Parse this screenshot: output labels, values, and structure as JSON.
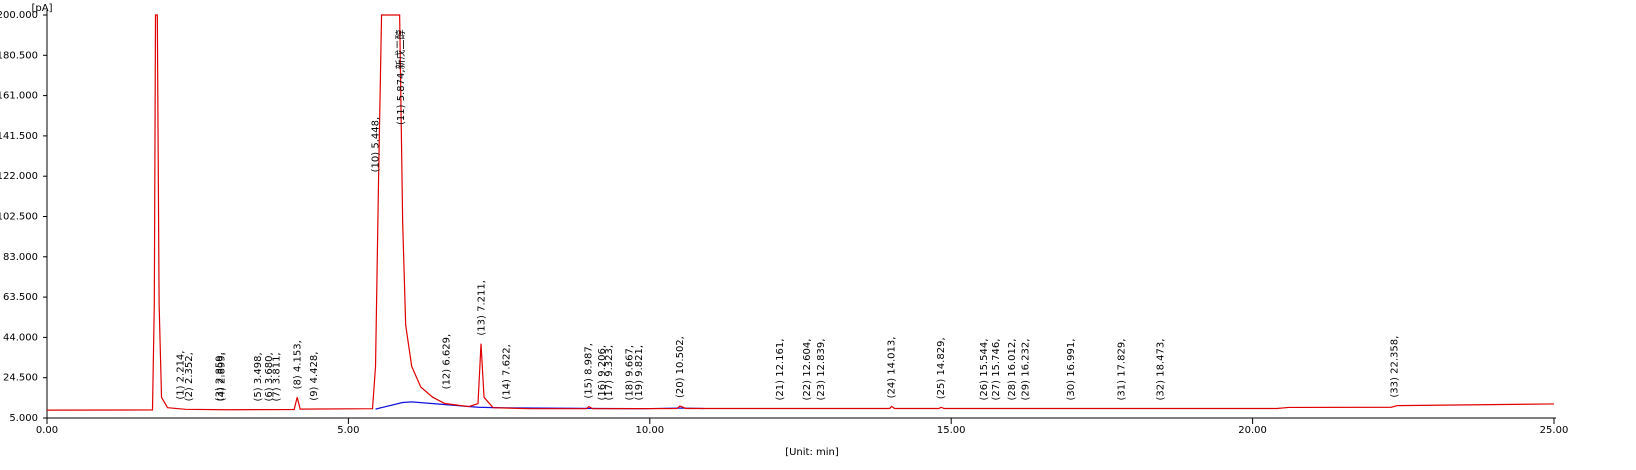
{
  "chart_data": {
    "type": "line",
    "y_label": "[pA]",
    "x_label": "[Unit: min]",
    "xlim": [
      0,
      25
    ],
    "ylim": [
      5,
      200
    ],
    "xticks": [
      {
        "value": 0,
        "label": "0.00"
      },
      {
        "value": 5,
        "label": "5.00"
      },
      {
        "value": 10,
        "label": "10.00"
      },
      {
        "value": 15,
        "label": "15.00"
      },
      {
        "value": 20,
        "label": "20.00"
      },
      {
        "value": 25,
        "label": "25.00"
      }
    ],
    "yticks": [
      {
        "value": 5,
        "label": "5.000"
      },
      {
        "value": 24.5,
        "label": "24.500"
      },
      {
        "value": 44,
        "label": "44.000"
      },
      {
        "value": 63.5,
        "label": "63.500"
      },
      {
        "value": 83,
        "label": "83.000"
      },
      {
        "value": 102.5,
        "label": "102.500"
      },
      {
        "value": 122,
        "label": "122.000"
      },
      {
        "value": 141.5,
        "label": "141.500"
      },
      {
        "value": 161,
        "label": "161.000"
      },
      {
        "value": 180.5,
        "label": "180.500"
      },
      {
        "value": 200,
        "label": "200.000"
      }
    ],
    "series": [
      {
        "color": "#e00000",
        "x": [
          0,
          1.75,
          1.78,
          1.8,
          1.83,
          1.86,
          1.9,
          2.0,
          2.3,
          3.0,
          4.1,
          4.15,
          4.2,
          5.4,
          5.45,
          5.5,
          5.55,
          5.85,
          5.9,
          5.95,
          6.05,
          6.2,
          6.4,
          6.6,
          7.0,
          7.15,
          7.2,
          7.25,
          7.4,
          8.0,
          8.95,
          8.99,
          9.05,
          10.45,
          10.5,
          10.6,
          13.98,
          14.01,
          14.06,
          14.8,
          14.83,
          14.88,
          20.4,
          20.6,
          22.3,
          22.4,
          25
        ],
        "values": [
          8.8,
          8.9,
          60,
          200,
          200,
          60,
          15,
          10,
          9.2,
          9.0,
          9.1,
          15,
          9.3,
          9.5,
          30,
          120,
          200,
          200,
          100,
          50,
          30,
          20,
          15,
          12,
          10.5,
          12,
          41,
          15,
          10,
          9.5,
          9.5,
          10.5,
          9.5,
          9.6,
          10.8,
          9.6,
          9.6,
          10.6,
          9.6,
          9.6,
          10.2,
          9.6,
          9.6,
          10.1,
          10.2,
          11,
          11.8
        ]
      },
      {
        "color": "#1010e0",
        "x": [
          5.45,
          5.9,
          6.05,
          7.15,
          7.6,
          9.2,
          9.9,
          10.5,
          10.9
        ],
        "values": [
          9.3,
          12.5,
          12.8,
          10.2,
          9.9,
          9.6,
          9.5,
          9.8,
          9.6
        ]
      }
    ],
    "peaks": [
      {
        "label": "(1) 2.214,",
        "x": 2.214
      },
      {
        "label": "(2) 2.352,",
        "x": 2.352
      },
      {
        "label": "(3) 2.859,",
        "x": 2.859
      },
      {
        "label": "(4) 2.899,",
        "x": 2.899
      },
      {
        "label": "(5) 3.498,",
        "x": 3.498
      },
      {
        "label": "(6) 3.680,",
        "x": 3.68
      },
      {
        "label": "(7) 3.811,",
        "x": 3.811
      },
      {
        "label": "(8) 4.153,",
        "x": 4.153
      },
      {
        "label": "(9) 4.428,",
        "x": 4.428
      },
      {
        "label": "(10) 5.448,",
        "x": 5.448
      },
      {
        "label": "(11) 5.874,新戊二醇",
        "x": 5.874
      },
      {
        "label": "(12) 6.629,",
        "x": 6.629
      },
      {
        "label": "(13) 7.211,",
        "x": 7.211
      },
      {
        "label": "(14) 7.622,",
        "x": 7.622
      },
      {
        "label": "(15) 8.987,",
        "x": 8.987
      },
      {
        "label": "(16) 9.206,",
        "x": 9.206
      },
      {
        "label": "(17) 9.323,",
        "x": 9.323
      },
      {
        "label": "(18) 9.667,",
        "x": 9.667
      },
      {
        "label": "(19) 9.821,",
        "x": 9.821
      },
      {
        "label": "(20) 10.502,",
        "x": 10.502
      },
      {
        "label": "(21) 12.161,",
        "x": 12.161
      },
      {
        "label": "(22) 12.604,",
        "x": 12.604
      },
      {
        "label": "(23) 12.839,",
        "x": 12.839
      },
      {
        "label": "(24) 14.013,",
        "x": 14.013
      },
      {
        "label": "(25) 14.829,",
        "x": 14.829
      },
      {
        "label": "(26) 15.544,",
        "x": 15.544
      },
      {
        "label": "(27) 15.746,",
        "x": 15.746
      },
      {
        "label": "(28) 16.012,",
        "x": 16.012
      },
      {
        "label": "(29) 16.232,",
        "x": 16.232
      },
      {
        "label": "(30) 16.991,",
        "x": 16.991
      },
      {
        "label": "(31) 17.829,",
        "x": 17.829
      },
      {
        "label": "(32) 18.473,",
        "x": 18.473
      },
      {
        "label": "(33) 22.358,",
        "x": 22.358
      }
    ]
  }
}
